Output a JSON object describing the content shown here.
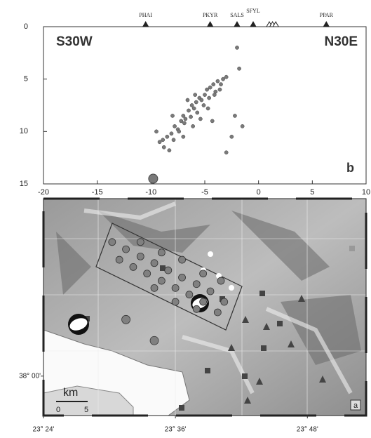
{
  "chart_data": [
    {
      "type": "scatter",
      "label_left": "S30W",
      "label_right": "N30E",
      "panel": "b",
      "xlim": [
        -20,
        10
      ],
      "xticks": [
        -20,
        -15,
        -10,
        -5,
        0,
        5,
        10
      ],
      "ylim": [
        0,
        15
      ],
      "yticks": [
        0,
        5,
        10,
        15
      ],
      "y_inverted": true,
      "color": "#7a7a7a",
      "x": [
        -9.2,
        -8.8,
        -8.5,
        -8.9,
        -8.1,
        -7.8,
        -7.5,
        -7.2,
        -7.0,
        -6.8,
        -6.5,
        -6.2,
        -6.0,
        -5.8,
        -5.5,
        -5.3,
        -5.0,
        -4.8,
        -4.5,
        -4.2,
        -4.0,
        -3.8,
        -3.5,
        -3.3,
        -3.0,
        -7.9,
        -7.4,
        -6.9,
        -6.3,
        -5.7,
        -5.1,
        -4.6,
        -4.1,
        -3.6,
        -8.3,
        -7.0,
        -6.1,
        -5.4,
        -4.7,
        -2.0,
        -1.8,
        -2.2,
        -1.5,
        -3.0,
        -2.5,
        -9.5,
        -8.0,
        -6.6,
        -5.9,
        -4.3
      ],
      "y": [
        11.0,
        11.5,
        10.5,
        10.8,
        10.2,
        9.5,
        9.8,
        9.0,
        8.5,
        8.8,
        8.0,
        7.5,
        7.8,
        7.2,
        6.8,
        7.0,
        6.5,
        6.0,
        5.8,
        5.5,
        6.2,
        5.2,
        5.5,
        5.0,
        4.8,
        10.8,
        10.0,
        9.2,
        8.6,
        8.2,
        7.5,
        6.8,
        6.5,
        6.0,
        11.8,
        10.5,
        9.5,
        8.8,
        7.8,
        2.0,
        4.0,
        8.5,
        9.5,
        12.0,
        10.5,
        10.0,
        8.5,
        7.0,
        6.5,
        9.0
      ],
      "mainshock": {
        "x": -9.8,
        "y": 14.5
      },
      "stations": {
        "names": [
          "PHAI",
          "PKYR",
          "SALS",
          "SFYL",
          null,
          null,
          null,
          "PPAR"
        ],
        "x": [
          -10.5,
          -4.5,
          -2,
          -0.5,
          1.0,
          1.3,
          1.6,
          6.3
        ]
      }
    },
    {
      "type": "map",
      "panel": "a",
      "scale_label": "km",
      "scale_ticks": [
        0,
        5
      ],
      "xlim": [
        23.4,
        23.889
      ],
      "xticks": [
        {
          "value": 23.4,
          "label": "23° 24'"
        },
        {
          "value": 23.6,
          "label": "23° 36'"
        },
        {
          "value": 23.8,
          "label": "23° 48'"
        }
      ],
      "ylim": [
        37.94,
        38.27
      ],
      "yticks": [
        {
          "value": 38.0,
          "label": "38° 00'"
        }
      ],
      "color": "#808080",
      "lon": [
        23.504,
        23.525,
        23.547,
        23.568,
        23.589,
        23.61,
        23.632,
        23.653,
        23.674,
        23.515,
        23.536,
        23.557,
        23.579,
        23.6,
        23.621,
        23.642,
        23.664,
        23.547,
        23.579,
        23.61,
        23.642,
        23.669,
        23.568,
        23.6,
        23.632,
        23.568,
        23.525
      ],
      "lat": [
        38.204,
        38.193,
        38.182,
        38.172,
        38.161,
        38.15,
        38.14,
        38.129,
        38.113,
        38.177,
        38.166,
        38.156,
        38.145,
        38.134,
        38.124,
        38.113,
        38.097,
        38.204,
        38.188,
        38.177,
        38.156,
        38.145,
        38.134,
        38.113,
        38.102,
        38.054,
        38.086
      ]
    }
  ]
}
